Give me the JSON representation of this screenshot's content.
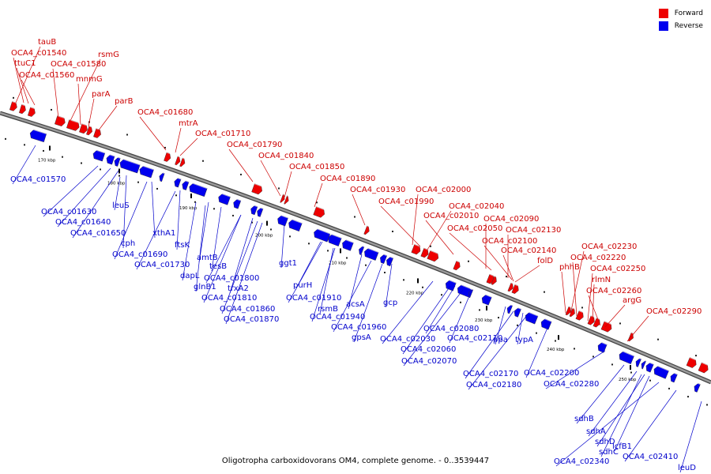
{
  "caption": "Oligotropha carboxidovorans OM4, complete genome. - 0..3539447",
  "legend": [
    {
      "label": "Forward",
      "color": "#ee0000"
    },
    {
      "label": "Reverse",
      "color": "#0000ee"
    }
  ],
  "colors": {
    "forward": "#ee0000",
    "reverse": "#0000ee",
    "backbone": "#777777"
  },
  "ticks": [
    "170 kbp",
    "180 kbp",
    "190 kbp",
    "200 kbp",
    "210 kbp",
    "220 kbp",
    "230 kbp",
    "240 kbp",
    "250 kbp"
  ],
  "forward_labels": [
    "tauB",
    "OCA4_c01540",
    "ttuC1",
    "OCA4_c01560",
    "OCA4_c01580",
    "rsmG",
    "mnmG",
    "parA",
    "parB",
    "OCA4_c01680",
    "mtrA",
    "OCA4_c01710",
    "OCA4_c01790",
    "OCA4_c01840",
    "OCA4_c01850",
    "OCA4_c01890",
    "OCA4_c01930",
    "OCA4_c02000",
    "OCA4_c01990",
    "OCA4_c02040",
    "OCA4_c02010",
    "OCA4_c02090",
    "OCA4_c02050",
    "OCA4_c02130",
    "OCA4_c02100",
    "OCA4_c02140",
    "folD",
    "phhB",
    "OCA4_c02230",
    "OCA4_c02220",
    "OCA4_c02250",
    "rlmN",
    "OCA4_c02260",
    "argG",
    "OCA4_c02290"
  ],
  "reverse_labels": [
    "OCA4_c01570",
    "leuS",
    "OCA4_c01630",
    "OCA4_c01640",
    "OCA4_c01650",
    "cph",
    "xthA1",
    "ftsK",
    "OCA4_c01690",
    "OCA4_c01730",
    "amtB",
    "tesB",
    "dapL",
    "glnB1",
    "OCA4_c01800",
    "trxA2",
    "OCA4_c01810",
    "ggt1",
    "OCA4_c01860",
    "OCA4_c01870",
    "purH",
    "OCA4_c01910",
    "rsmB",
    "acsA",
    "OCA4_c01940",
    "gcp",
    "OCA4_c01960",
    "gpsA",
    "OCA4_c02080",
    "OCA4_c02030",
    "OCA4_c02110",
    "OCA4_c02060",
    "OCA4_c02070",
    "ppa",
    "typA",
    "OCA4_c02170",
    "OCA4_c02200",
    "OCA4_c02180",
    "OCA4_c02280",
    "sdhB",
    "sdhA",
    "sdhD",
    "lcfB1",
    "sdhC",
    "OCA4_c02410",
    "OCA4_c02340",
    "leuD"
  ]
}
